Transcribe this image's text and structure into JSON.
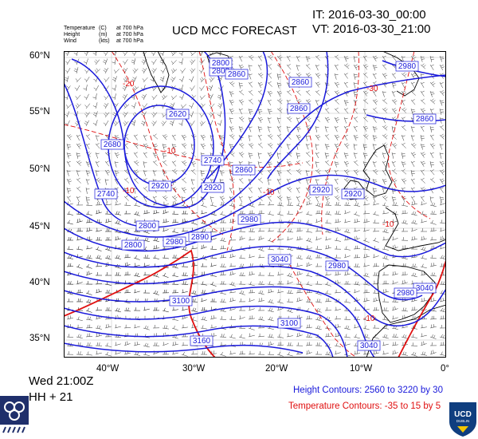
{
  "header": {
    "title": "UCD MCC FORECAST",
    "initial_time": "IT: 2016-03-30_00:00",
    "valid_time": "VT: 2016-03-30_21:00"
  },
  "legend": [
    {
      "name": "Temperature",
      "unit": "(C)",
      "level": "at 700 hPa"
    },
    {
      "name": "Height",
      "unit": "(m)",
      "level": "at 700 hPa"
    },
    {
      "name": "Wind",
      "unit": "(kts)",
      "level": "at 700 hPa"
    }
  ],
  "map": {
    "lat_labels": [
      "60°N",
      "55°N",
      "50°N",
      "45°N",
      "40°N",
      "35°N"
    ],
    "lon_labels": [
      "40°W",
      "30°W",
      "20°W",
      "10°W",
      "0°"
    ],
    "height_labels": [
      "2800",
      "2800",
      "2860",
      "2860",
      "2620",
      "2680",
      "2920",
      "2740",
      "2860",
      "2740",
      "2800",
      "2920",
      "2980",
      "3040",
      "2980",
      "2920",
      "3100",
      "3160",
      "2860",
      "2920",
      "3040",
      "2980",
      "3040",
      "2980",
      "3100",
      "2980",
      "2860",
      "2800",
      "2890"
    ],
    "temp_labels": [
      "-20",
      "-30",
      "-10",
      "-10",
      "-10",
      "-10",
      "-10"
    ],
    "colors": {
      "height": "#1a1adb",
      "temp": "#e01010",
      "coast": "#000000",
      "wind": "#333333"
    }
  },
  "footer": {
    "day": "Wed 21:00Z",
    "lead": "HH + 21",
    "height_note": "Height Contours: 2560 to 3220 by 30",
    "temp_note": "Temperature Contours: -35 to 15 by 5"
  },
  "logos": {
    "left": "met-office-logo",
    "right": "ucd-dublin-crest",
    "right_text": [
      "UCD",
      "DUBLIN"
    ]
  }
}
